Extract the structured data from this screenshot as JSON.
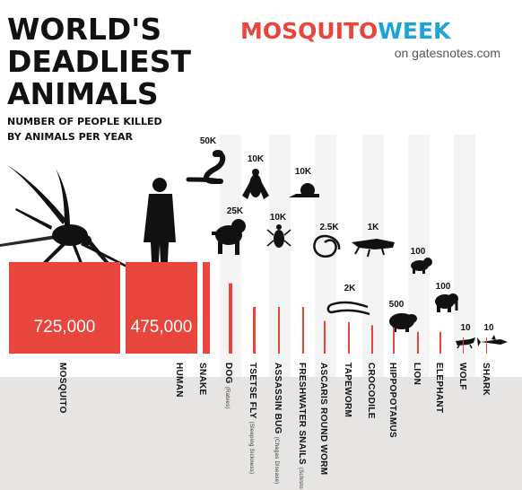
{
  "title_lines": [
    "WORLD'S",
    "DEADLIEST",
    "ANIMALS"
  ],
  "subtitle_lines": [
    "NUMBER OF PEOPLE KILLED",
    "BY ANIMALS PER YEAR"
  ],
  "brand": {
    "part1": "MOSQUITO",
    "part2": "WEEK",
    "sub": "on gatesnotes.com"
  },
  "colors": {
    "bar": "#e8453c",
    "brand_red": "#e8453c",
    "brand_blue": "#1aa4d9",
    "footer": "#e7e5e3",
    "stripe": "#f4f4f4"
  },
  "icons": [
    "mosquito-icon",
    "human-icon",
    "snake-icon",
    "dog-icon",
    "tsetse-fly-icon",
    "assassin-bug-icon",
    "freshwater-snail-icon",
    "roundworm-icon",
    "tapeworm-icon",
    "crocodile-icon",
    "hippopotamus-icon",
    "lion-icon",
    "elephant-icon",
    "wolf-icon",
    "shark-icon"
  ],
  "chart_data": {
    "type": "bar",
    "title": "WORLD'S DEADLIEST ANIMALS",
    "subtitle": "NUMBER OF PEOPLE KILLED BY ANIMALS PER YEAR",
    "categories": [
      "MOSQUITO",
      "HUMAN",
      "SNAKE",
      "DOG",
      "TSETSE FLY",
      "ASSASSIN BUG",
      "FRESHWATER SNAILS",
      "ASCARIS ROUND WORM",
      "TAPEWORM",
      "CROCODILE",
      "HIPPOPOTAMUS",
      "LION",
      "ELEPHANT",
      "WOLF",
      "SHARK"
    ],
    "category_notes": [
      "",
      "",
      "",
      "(Rabies)",
      "(Sleeping Sickness)",
      "(Chagas Disease)",
      "(Schisto",
      "",
      "",
      "",
      "",
      "",
      "",
      "",
      ""
    ],
    "values": [
      725000,
      475000,
      50000,
      25000,
      10000,
      10000,
      10000,
      2500,
      2000,
      1000,
      500,
      100,
      100,
      10,
      10
    ],
    "value_labels": [
      "725,000",
      "475,000",
      "50K",
      "25K",
      "10K",
      "10K",
      "10K",
      "2.5K",
      "2K",
      "1K",
      "500",
      "100",
      "100",
      "10",
      "10"
    ],
    "ylim": [
      0,
      100000
    ],
    "grid": false,
    "legend": "none"
  }
}
